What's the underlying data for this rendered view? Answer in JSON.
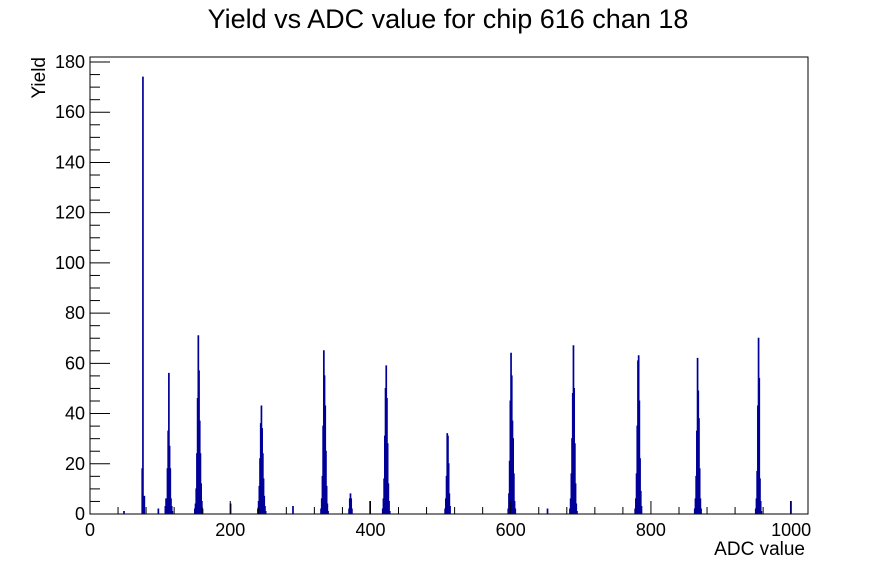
{
  "chart_data": {
    "type": "histogram",
    "title": "Yield vs ADC value for chip 616 chan 18",
    "xlabel": "ADC value",
    "ylabel": "Yield",
    "xlim": [
      0,
      1024
    ],
    "ylim": [
      0,
      182
    ],
    "x_ticks": [
      "0",
      "200",
      "400",
      "600",
      "800",
      "1000"
    ],
    "y_ticks": [
      "0",
      "20",
      "40",
      "60",
      "80",
      "100",
      "120",
      "140",
      "160",
      "180"
    ],
    "bin_width": 1,
    "line_color": "#000099",
    "grid": false,
    "bins": [
      [
        48,
        1
      ],
      [
        74,
        18
      ],
      [
        75,
        174
      ],
      [
        76,
        7
      ],
      [
        77,
        7
      ],
      [
        97,
        2
      ],
      [
        107,
        3
      ],
      [
        108,
        6
      ],
      [
        109,
        5
      ],
      [
        110,
        18
      ],
      [
        111,
        33
      ],
      [
        112,
        56
      ],
      [
        113,
        27
      ],
      [
        114,
        18
      ],
      [
        115,
        6
      ],
      [
        116,
        3
      ],
      [
        117,
        1
      ],
      [
        149,
        2
      ],
      [
        150,
        4
      ],
      [
        151,
        10
      ],
      [
        152,
        24
      ],
      [
        153,
        46
      ],
      [
        154,
        71
      ],
      [
        155,
        57
      ],
      [
        156,
        37
      ],
      [
        157,
        24
      ],
      [
        158,
        12
      ],
      [
        159,
        5
      ],
      [
        160,
        2
      ],
      [
        200,
        4
      ],
      [
        239,
        2
      ],
      [
        240,
        5
      ],
      [
        241,
        11
      ],
      [
        242,
        22
      ],
      [
        243,
        36
      ],
      [
        244,
        43
      ],
      [
        245,
        34
      ],
      [
        246,
        24
      ],
      [
        247,
        14
      ],
      [
        248,
        7
      ],
      [
        249,
        3
      ],
      [
        250,
        1
      ],
      [
        289,
        3
      ],
      [
        329,
        2
      ],
      [
        330,
        6
      ],
      [
        331,
        15
      ],
      [
        332,
        35
      ],
      [
        333,
        65
      ],
      [
        334,
        55
      ],
      [
        335,
        43
      ],
      [
        336,
        25
      ],
      [
        337,
        11
      ],
      [
        338,
        4
      ],
      [
        339,
        1
      ],
      [
        369,
        2
      ],
      [
        370,
        6
      ],
      [
        371,
        8
      ],
      [
        372,
        6
      ],
      [
        373,
        2
      ],
      [
        399,
        5
      ],
      [
        417,
        2
      ],
      [
        418,
        6
      ],
      [
        419,
        14
      ],
      [
        420,
        31
      ],
      [
        421,
        50
      ],
      [
        422,
        59
      ],
      [
        423,
        46
      ],
      [
        424,
        28
      ],
      [
        425,
        12
      ],
      [
        426,
        5
      ],
      [
        427,
        1
      ],
      [
        506,
        2
      ],
      [
        507,
        6
      ],
      [
        508,
        15
      ],
      [
        509,
        32
      ],
      [
        510,
        31
      ],
      [
        511,
        20
      ],
      [
        512,
        8
      ],
      [
        513,
        3
      ],
      [
        596,
        2
      ],
      [
        597,
        8
      ],
      [
        598,
        21
      ],
      [
        599,
        45
      ],
      [
        600,
        64
      ],
      [
        601,
        55
      ],
      [
        602,
        37
      ],
      [
        603,
        30
      ],
      [
        604,
        16
      ],
      [
        605,
        5
      ],
      [
        606,
        2
      ],
      [
        652,
        2
      ],
      [
        684,
        2
      ],
      [
        685,
        6
      ],
      [
        686,
        16
      ],
      [
        687,
        30
      ],
      [
        688,
        48
      ],
      [
        689,
        67
      ],
      [
        690,
        50
      ],
      [
        691,
        28
      ],
      [
        692,
        12
      ],
      [
        693,
        4
      ],
      [
        694,
        1
      ],
      [
        777,
        2
      ],
      [
        778,
        6
      ],
      [
        779,
        16
      ],
      [
        780,
        35
      ],
      [
        781,
        61
      ],
      [
        782,
        63
      ],
      [
        783,
        45
      ],
      [
        784,
        22
      ],
      [
        785,
        9
      ],
      [
        786,
        3
      ],
      [
        862,
        2
      ],
      [
        863,
        6
      ],
      [
        864,
        15
      ],
      [
        865,
        33
      ],
      [
        866,
        62
      ],
      [
        867,
        49
      ],
      [
        868,
        38
      ],
      [
        869,
        18
      ],
      [
        870,
        6
      ],
      [
        871,
        2
      ],
      [
        949,
        2
      ],
      [
        950,
        6
      ],
      [
        951,
        17
      ],
      [
        952,
        43
      ],
      [
        953,
        70
      ],
      [
        954,
        54
      ],
      [
        955,
        14
      ],
      [
        956,
        5
      ],
      [
        957,
        1
      ],
      [
        999,
        5
      ]
    ]
  }
}
